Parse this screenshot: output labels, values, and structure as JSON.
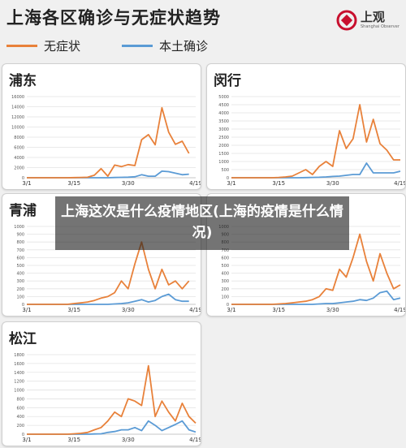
{
  "header": {
    "title": "上海各区确诊与无症状趋势",
    "logo_text": "上观",
    "logo_sub": "Shanghai Observer"
  },
  "legend": {
    "items": [
      {
        "label": "无症状",
        "color": "#E8813A"
      },
      {
        "label": "本土确诊",
        "color": "#5B9BD5"
      }
    ]
  },
  "overlay": {
    "headline": "上海这次是什么疫情地区(上海的疫情是什么情况)"
  },
  "colors": {
    "asymptomatic": "#E8813A",
    "confirmed": "#5B9BD5"
  },
  "chart_data": [
    {
      "type": "line",
      "title": "浦东",
      "x_ticks": [
        "3/1",
        "3/15",
        "3/30",
        "4/19"
      ],
      "ylim": [
        0,
        16000
      ],
      "y_ticks": [
        0,
        2000,
        4000,
        6000,
        8000,
        10000,
        12000,
        14000,
        16000
      ],
      "x": [
        "3/1",
        "3/3",
        "3/5",
        "3/7",
        "3/9",
        "3/11",
        "3/13",
        "3/15",
        "3/17",
        "3/19",
        "3/21",
        "3/23",
        "3/25",
        "3/27",
        "3/29",
        "3/30",
        "4/1",
        "4/3",
        "4/5",
        "4/7",
        "4/9",
        "4/11",
        "4/13",
        "4/15",
        "4/17",
        "4/19"
      ],
      "series": [
        {
          "name": "无症状",
          "values": [
            0,
            0,
            0,
            0,
            0,
            0,
            0,
            30,
            60,
            100,
            500,
            1800,
            300,
            2500,
            2200,
            2600,
            2400,
            7500,
            8500,
            6500,
            13800,
            9000,
            6600,
            7200,
            4800,
            null
          ]
        },
        {
          "name": "本土确诊",
          "values": [
            0,
            0,
            0,
            0,
            0,
            0,
            0,
            0,
            0,
            0,
            0,
            0,
            0,
            50,
            80,
            120,
            200,
            600,
            300,
            300,
            1300,
            1200,
            900,
            600,
            700,
            null
          ]
        }
      ]
    },
    {
      "type": "line",
      "title": "闵行",
      "x_ticks": [
        "3/1",
        "3/15",
        "3/30",
        "4/19"
      ],
      "ylim": [
        0,
        5000
      ],
      "y_ticks": [
        0,
        500,
        1000,
        1500,
        2000,
        2500,
        3000,
        3500,
        4000,
        4500,
        5000
      ],
      "x": [
        "3/1",
        "3/3",
        "3/5",
        "3/7",
        "3/9",
        "3/11",
        "3/13",
        "3/15",
        "3/17",
        "3/19",
        "3/21",
        "3/23",
        "3/25",
        "3/27",
        "3/29",
        "3/30",
        "4/1",
        "4/3",
        "4/5",
        "4/7",
        "4/9",
        "4/11",
        "4/13",
        "4/15",
        "4/17",
        "4/19"
      ],
      "series": [
        {
          "name": "无症状",
          "values": [
            0,
            0,
            0,
            0,
            0,
            0,
            0,
            20,
            50,
            100,
            300,
            500,
            200,
            700,
            1000,
            700,
            2900,
            1800,
            2400,
            4500,
            2200,
            3600,
            2100,
            1700,
            1100,
            1100
          ]
        },
        {
          "name": "本土确诊",
          "values": [
            0,
            0,
            0,
            0,
            0,
            0,
            0,
            0,
            0,
            0,
            0,
            10,
            20,
            30,
            50,
            80,
            100,
            150,
            200,
            200,
            900,
            300,
            300,
            300,
            300,
            400
          ]
        }
      ]
    },
    {
      "type": "line",
      "title": "青浦",
      "x_ticks": [
        "3/1",
        "3/15",
        "3/30",
        "4/19"
      ],
      "ylim": [
        0,
        1000
      ],
      "y_ticks": [
        0,
        100,
        200,
        300,
        400,
        500,
        600,
        700,
        800,
        900,
        1000
      ],
      "x": [
        "3/1",
        "3/3",
        "3/5",
        "3/7",
        "3/9",
        "3/11",
        "3/13",
        "3/15",
        "3/17",
        "3/19",
        "3/21",
        "3/23",
        "3/25",
        "3/27",
        "3/29",
        "3/30",
        "4/1",
        "4/3",
        "4/5",
        "4/7",
        "4/9",
        "4/11",
        "4/13",
        "4/15",
        "4/17",
        "4/19"
      ],
      "series": [
        {
          "name": "无症状",
          "values": [
            0,
            0,
            0,
            0,
            0,
            0,
            0,
            10,
            20,
            30,
            50,
            80,
            100,
            150,
            300,
            200,
            520,
            800,
            450,
            200,
            450,
            250,
            300,
            200,
            300,
            null
          ]
        },
        {
          "name": "本土确诊",
          "values": [
            0,
            0,
            0,
            0,
            0,
            0,
            0,
            0,
            0,
            0,
            0,
            0,
            0,
            5,
            10,
            20,
            40,
            60,
            30,
            50,
            100,
            130,
            60,
            40,
            40,
            null
          ]
        }
      ]
    },
    {
      "type": "line",
      "title": "",
      "x_ticks": [
        "3/1",
        "3/15",
        "3/30",
        "4/19"
      ],
      "ylim": [
        0,
        1000
      ],
      "y_ticks": [
        0,
        100,
        200,
        300,
        400,
        500,
        600,
        700,
        800,
        900,
        1000
      ],
      "x": [
        "3/1",
        "3/3",
        "3/5",
        "3/7",
        "3/9",
        "3/11",
        "3/13",
        "3/15",
        "3/17",
        "3/19",
        "3/21",
        "3/23",
        "3/25",
        "3/27",
        "3/29",
        "3/30",
        "4/1",
        "4/3",
        "4/5",
        "4/7",
        "4/9",
        "4/11",
        "4/13",
        "4/15",
        "4/17",
        "4/19"
      ],
      "series": [
        {
          "name": "无症状",
          "values": [
            0,
            0,
            0,
            0,
            0,
            0,
            0,
            5,
            10,
            20,
            30,
            40,
            60,
            100,
            200,
            180,
            450,
            350,
            600,
            900,
            550,
            300,
            650,
            400,
            200,
            250
          ]
        },
        {
          "name": "本土确诊",
          "values": [
            0,
            0,
            0,
            0,
            0,
            0,
            0,
            0,
            0,
            0,
            0,
            0,
            0,
            5,
            10,
            10,
            20,
            30,
            40,
            60,
            50,
            80,
            150,
            170,
            60,
            80
          ]
        }
      ]
    },
    {
      "type": "line",
      "title": "松江",
      "x_ticks": [
        "3/1",
        "3/15",
        "3/30",
        "4/19"
      ],
      "ylim": [
        0,
        1800
      ],
      "y_ticks": [
        0,
        200,
        400,
        600,
        800,
        1000,
        1200,
        1400,
        1600,
        1800
      ],
      "x": [
        "3/1",
        "3/3",
        "3/5",
        "3/7",
        "3/9",
        "3/11",
        "3/13",
        "3/15",
        "3/17",
        "3/19",
        "3/21",
        "3/23",
        "3/25",
        "3/27",
        "3/29",
        "3/30",
        "4/1",
        "4/3",
        "4/5",
        "4/7",
        "4/9",
        "4/11",
        "4/13",
        "4/15",
        "4/17",
        "4/19"
      ],
      "series": [
        {
          "name": "无症状",
          "values": [
            0,
            0,
            0,
            0,
            0,
            0,
            0,
            10,
            20,
            40,
            100,
            150,
            300,
            500,
            400,
            800,
            750,
            650,
            1550,
            400,
            750,
            500,
            300,
            700,
            400,
            250
          ]
        },
        {
          "name": "本土确诊",
          "values": [
            0,
            0,
            0,
            0,
            0,
            0,
            0,
            0,
            0,
            0,
            5,
            10,
            40,
            60,
            100,
            100,
            150,
            80,
            300,
            200,
            80,
            150,
            220,
            300,
            100,
            50
          ]
        }
      ]
    }
  ]
}
